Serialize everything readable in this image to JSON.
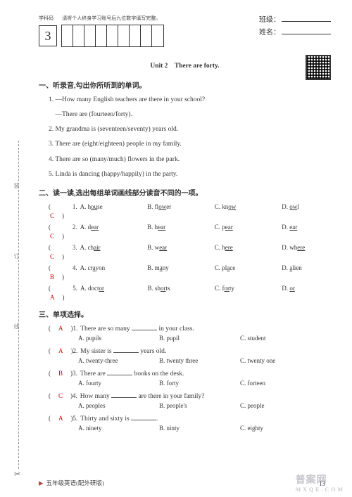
{
  "header": {
    "subject_code_label": "学科码",
    "instruction": "请将个人终身学习账号后九位数字填写完整。",
    "big_number": "3",
    "class_label": "班级：",
    "name_label": "姓名："
  },
  "unit_title": "Unit 2　There are forty.",
  "section1": {
    "title": "一、听录音,勾出你所听到的单词。",
    "items": [
      "1. —How many English teachers are there in your school?",
      "　—There are (fourteen/forty).",
      "2. My grandma is (seventeen/seventy) years old.",
      "3. There are (eight/eighteen) people in my family.",
      "4. There are so (many/much) flowers in the park.",
      "5. Linda is dancing (happy/happily) in the party."
    ]
  },
  "section2": {
    "title": "二、读一读,选出每组单词画线部分读音不同的一项。",
    "rows": [
      {
        "ans": "C",
        "n": "1",
        "a": "A. house",
        "au": "ou",
        "b": "B. flower",
        "bu": "ow",
        "c": "C. know",
        "cu": "ow",
        "d": "D. owl",
        "du": "ow"
      },
      {
        "ans": "C",
        "n": "2",
        "a": "A. dear",
        "au": "ear",
        "b": "B. hear",
        "bu": "ear",
        "c": "C. pear",
        "cu": "ear",
        "d": "D. ear",
        "du": "ear"
      },
      {
        "ans": "C",
        "n": "3",
        "a": "A. chair",
        "au": "air",
        "b": "B. wear",
        "bu": "ear",
        "c": "C. here",
        "cu": "ere",
        "d": "D. where",
        "du": "ere"
      },
      {
        "ans": "B",
        "n": "4",
        "a": "A. crayon",
        "au": "a",
        "b": "B. many",
        "bu": "a",
        "c": "C. place",
        "cu": "a",
        "d": "D. alien",
        "du": "a"
      },
      {
        "ans": "A",
        "n": "5",
        "a": "A. doctor",
        "au": "or",
        "b": "B. shorts",
        "bu": "or",
        "c": "C. forty",
        "cu": "or",
        "d": "D. or",
        "du": "or"
      }
    ]
  },
  "section3": {
    "title": "三、单项选择。",
    "rows": [
      {
        "ans": "A",
        "n": "1",
        "stem_pre": "There are so many ",
        "stem_post": " in your class.",
        "opts": [
          "A. pupils",
          "B. pupil",
          "C. student"
        ]
      },
      {
        "ans": "A",
        "n": "2",
        "stem_pre": "My sister is ",
        "stem_post": " years old.",
        "opts": [
          "A. twenty-three",
          "B. twenty three",
          "C. twenty one"
        ]
      },
      {
        "ans": "B",
        "n": "3",
        "stem_pre": "There are ",
        "stem_post": " books on the desk.",
        "opts": [
          "A. fourty",
          "B. forty",
          "C. forteen"
        ]
      },
      {
        "ans": "C",
        "n": "4",
        "stem_pre": "How many ",
        "stem_post": " are there in your family?",
        "opts": [
          "A. peoples",
          "B. people's",
          "C. people"
        ]
      },
      {
        "ans": "A",
        "n": "5",
        "stem_pre": "Thirty and sixty is ",
        "stem_post": ".",
        "opts": [
          "A. ninety",
          "B. ninty",
          "C. eighty"
        ]
      }
    ]
  },
  "footer": "五年级英语(配外研版)",
  "page_number": "13",
  "bind_labels": [
    "装",
    "订",
    "线"
  ],
  "watermark": {
    "main": "普案网",
    "sub": "MXQE.COM"
  }
}
